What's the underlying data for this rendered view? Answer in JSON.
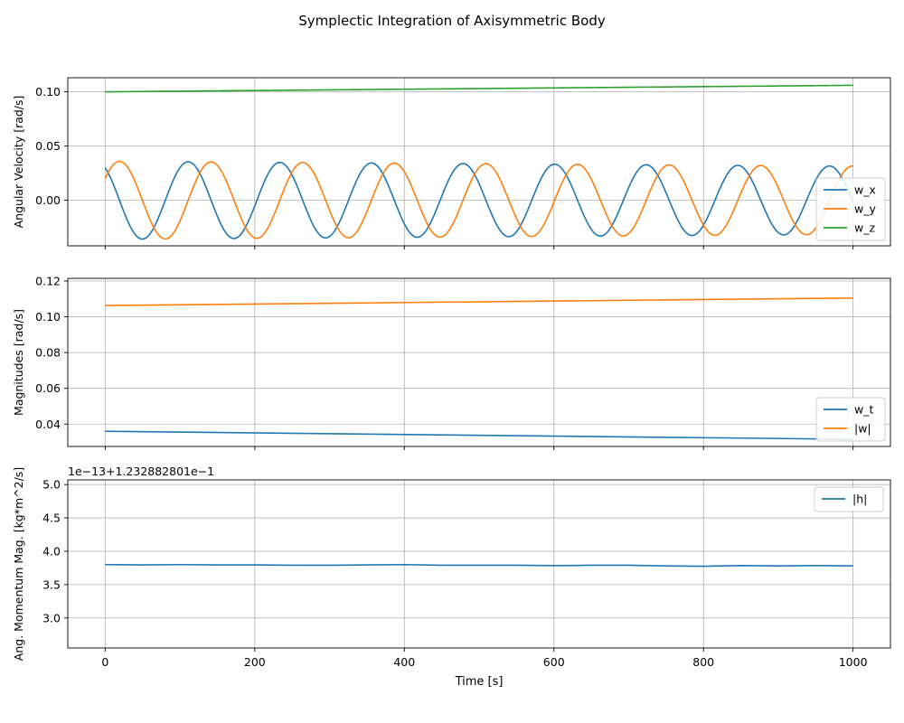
{
  "figure": {
    "title": "Symplectic Integration of Axisymmetric Body",
    "xlabel": "Time [s]"
  },
  "chart_data": [
    {
      "type": "line",
      "ylabel": "Angular Velocity [rad/s]",
      "xlim": [
        -50,
        1050
      ],
      "ylim": [
        -0.042,
        0.113
      ],
      "xticks": [
        0,
        200,
        400,
        600,
        800,
        1000
      ],
      "xtick_labels": [
        "0",
        "200",
        "400",
        "600",
        "800",
        "1000"
      ],
      "yticks": [
        0.0,
        0.05,
        0.1
      ],
      "ytick_labels": [
        "0.00",
        "0.05",
        "0.10"
      ],
      "grid": true,
      "legend": "lower-right",
      "series": [
        {
          "name": "w_x",
          "color": "#1f77b4",
          "model": {
            "kind": "cos",
            "amp0": 0.036,
            "amp1": 0.0315,
            "period": 122.5,
            "phase": 0.59
          }
        },
        {
          "name": "w_y",
          "color": "#ff7f0e",
          "model": {
            "kind": "sin",
            "amp0": 0.036,
            "amp1": 0.0315,
            "period": 122.5,
            "phase": 0.59
          }
        },
        {
          "name": "w_z",
          "color": "#2ca02c",
          "model": {
            "kind": "linear",
            "y0": 0.1,
            "y1": 0.106
          }
        }
      ]
    },
    {
      "type": "line",
      "ylabel": "Magnitudes [rad/s]",
      "xlim": [
        -50,
        1050
      ],
      "ylim": [
        0.0275,
        0.1215
      ],
      "xticks": [
        0,
        200,
        400,
        600,
        800,
        1000
      ],
      "yticks": [
        0.04,
        0.06,
        0.08,
        0.1,
        0.12
      ],
      "ytick_labels": [
        "0.04",
        "0.06",
        "0.08",
        "0.10",
        "0.12"
      ],
      "grid": true,
      "legend": "lower-right",
      "series": [
        {
          "name": "w_t",
          "color": "#1f77b4",
          "x": [
            0,
            1000
          ],
          "y": [
            0.036,
            0.0315
          ]
        },
        {
          "name": "|w|",
          "color": "#ff7f0e",
          "x": [
            0,
            1000
          ],
          "y": [
            0.1063,
            0.1105
          ]
        }
      ]
    },
    {
      "type": "line",
      "ylabel": "Ang. Momentum Mag. [kg*m^2/s]",
      "offset_text": "1e−13+1.232882801e−1",
      "xlim": [
        -50,
        1050
      ],
      "ylim": [
        2.55,
        5.07
      ],
      "xticks": [
        0,
        200,
        400,
        600,
        800,
        1000
      ],
      "xtick_labels": [
        "0",
        "200",
        "400",
        "600",
        "800",
        "1000"
      ],
      "yticks": [
        3.0,
        3.5,
        4.0,
        4.5,
        5.0
      ],
      "ytick_labels": [
        "3.0",
        "3.5",
        "4.0",
        "4.5",
        "5.0"
      ],
      "grid": true,
      "legend": "upper-right",
      "series": [
        {
          "name": "|h|",
          "color": "#1f77b4",
          "x": [
            0,
            50,
            100,
            150,
            200,
            250,
            300,
            350,
            400,
            450,
            500,
            550,
            600,
            650,
            700,
            750,
            800,
            850,
            900,
            950,
            1000
          ],
          "y": [
            3.8,
            3.795,
            3.8,
            3.795,
            3.795,
            3.79,
            3.79,
            3.795,
            3.8,
            3.79,
            3.79,
            3.79,
            3.785,
            3.79,
            3.79,
            3.78,
            3.775,
            3.785,
            3.78,
            3.785,
            3.78
          ]
        }
      ]
    }
  ]
}
